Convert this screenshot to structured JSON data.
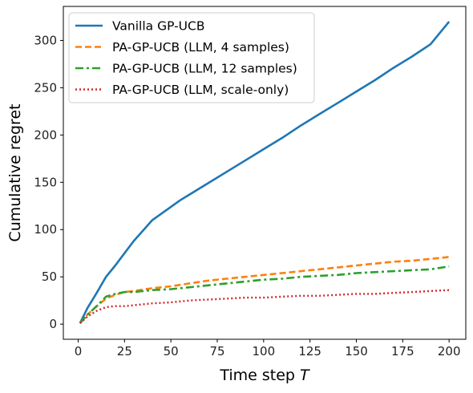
{
  "chart_data": {
    "type": "line",
    "title": "",
    "xlabel": "Time step",
    "xlabel_var": "T",
    "ylabel": "Cumulative regret",
    "xlim": [
      -8,
      209
    ],
    "ylim": [
      -16,
      336
    ],
    "xticks": [
      "0",
      "25",
      "50",
      "75",
      "100",
      "125",
      "150",
      "175",
      "200"
    ],
    "yticks": [
      "0",
      "50",
      "100",
      "150",
      "200",
      "250",
      "300"
    ],
    "grid": false,
    "legend_position": "top-left",
    "series": [
      {
        "name": "Vanilla GP-UCB",
        "color": "#1f77b4",
        "style": "solid",
        "x": [
          1,
          5,
          10,
          15,
          20,
          25,
          30,
          35,
          40,
          45,
          50,
          55,
          60,
          70,
          80,
          90,
          100,
          110,
          120,
          130,
          140,
          150,
          160,
          170,
          180,
          190,
          200
        ],
        "y": [
          1,
          17,
          33,
          50,
          62,
          75,
          88,
          99,
          110,
          117,
          124,
          131,
          137,
          149,
          161,
          173,
          185,
          197,
          210,
          222,
          234,
          246,
          258,
          271,
          283,
          296,
          320
        ]
      },
      {
        "name": "PA-GP-UCB (LLM, 4 samples)",
        "color": "#ff7f0e",
        "style": "dashed",
        "x": [
          1,
          5,
          10,
          15,
          20,
          25,
          30,
          40,
          50,
          60,
          70,
          80,
          90,
          100,
          110,
          120,
          130,
          140,
          150,
          160,
          170,
          180,
          190,
          200
        ],
        "y": [
          1,
          10,
          19,
          27,
          31,
          34,
          35,
          38,
          40,
          43,
          46,
          48,
          50,
          52,
          54,
          56,
          58,
          60,
          62,
          64,
          66,
          67,
          69,
          71
        ]
      },
      {
        "name": "PA-GP-UCB (LLM, 12 samples)",
        "color": "#2ca02c",
        "style": "dashdot",
        "x": [
          1,
          5,
          10,
          15,
          20,
          25,
          30,
          40,
          50,
          60,
          70,
          80,
          90,
          100,
          110,
          120,
          130,
          140,
          150,
          160,
          170,
          180,
          190,
          200
        ],
        "y": [
          1,
          10,
          19,
          29,
          32,
          34,
          34,
          36,
          37,
          39,
          41,
          43,
          45,
          47,
          48,
          50,
          51,
          52,
          54,
          55,
          56,
          57,
          58,
          61
        ]
      },
      {
        "name": "PA-GP-UCB (LLM, scale-only)",
        "color": "#d62728",
        "style": "dotted",
        "x": [
          1,
          5,
          10,
          15,
          20,
          25,
          30,
          35,
          40,
          50,
          60,
          70,
          80,
          90,
          100,
          110,
          120,
          130,
          140,
          150,
          160,
          170,
          180,
          190,
          200
        ],
        "y": [
          1,
          8,
          14,
          18,
          19,
          19,
          20,
          21,
          22,
          23,
          25,
          26,
          27,
          28,
          28,
          29,
          30,
          30,
          31,
          32,
          32,
          33,
          34,
          35,
          36
        ]
      }
    ]
  }
}
